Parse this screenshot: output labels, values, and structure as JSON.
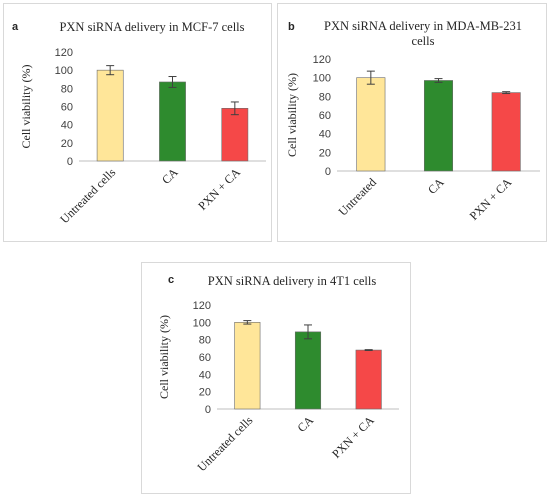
{
  "colors": {
    "untreated": "#ffe699",
    "ca": "#2e8b2e",
    "pxn_ca": "#f54848",
    "axis": "#bfbfbf",
    "error_bar": "#404040"
  },
  "chart_data": [
    {
      "type": "bar",
      "panel_label": "a",
      "title": [
        "PXN siRNA delivery  in MCF-7 cells"
      ],
      "ylabel": "Cell viability  (%)",
      "xlabel": "",
      "categories": [
        "Untreated cells",
        "CA",
        "PXN + CA"
      ],
      "values": [
        100,
        87,
        58
      ],
      "errors": [
        5,
        6,
        7
      ],
      "ylim": [
        0,
        120
      ],
      "yticks": [
        0,
        20,
        40,
        60,
        80,
        100,
        120
      ],
      "grid": false
    },
    {
      "type": "bar",
      "panel_label": "b",
      "title": [
        "PXN siRNA delivery  in MDA-MB-231",
        "cells"
      ],
      "ylabel": "Cell viability  (%)",
      "xlabel": "",
      "categories": [
        "Untreated",
        "CA",
        "PXN + CA"
      ],
      "values": [
        100,
        97,
        84
      ],
      "errors": [
        7,
        2,
        1
      ],
      "ylim": [
        0,
        120
      ],
      "yticks": [
        0,
        20,
        40,
        60,
        80,
        100,
        120
      ],
      "grid": false
    },
    {
      "type": "bar",
      "panel_label": "c",
      "title": [
        "PXN siRNA delivery  in 4T1 cells"
      ],
      "ylabel": "Cell viability  (%)",
      "xlabel": "",
      "categories": [
        "Untreated cells",
        "CA",
        "PXN + CA"
      ],
      "values": [
        100,
        89,
        68
      ],
      "errors": [
        2,
        8,
        0.5
      ],
      "ylim": [
        0,
        120
      ],
      "yticks": [
        0,
        20,
        40,
        60,
        80,
        100,
        120
      ],
      "grid": false
    }
  ]
}
